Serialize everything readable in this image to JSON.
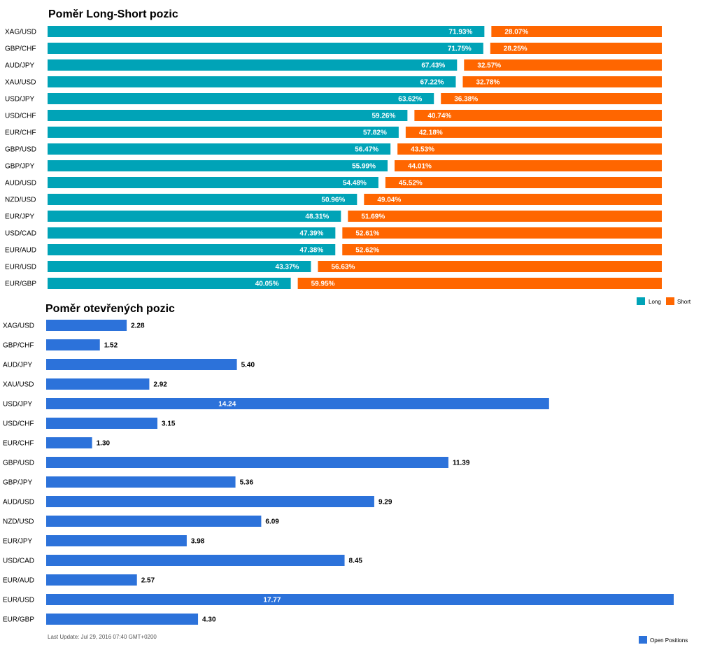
{
  "colors": {
    "long": "#00A3B7",
    "short": "#FF6600",
    "open": "#2C72DA"
  },
  "chart_data": [
    {
      "type": "bar",
      "orientation": "horizontal",
      "stacked": true,
      "title": "Poměr Long-Short pozic",
      "categories": [
        "XAG/USD",
        "GBP/CHF",
        "AUD/JPY",
        "XAU/USD",
        "USD/JPY",
        "USD/CHF",
        "EUR/CHF",
        "GBP/USD",
        "GBP/JPY",
        "AUD/USD",
        "NZD/USD",
        "EUR/JPY",
        "USD/CAD",
        "EUR/AUD",
        "EUR/USD",
        "EUR/GBP"
      ],
      "series": [
        {
          "name": "Long",
          "values": [
            71.93,
            71.75,
            67.43,
            67.22,
            63.62,
            59.26,
            57.82,
            56.47,
            55.99,
            54.48,
            50.96,
            48.31,
            47.39,
            47.38,
            43.37,
            40.05
          ]
        },
        {
          "name": "Short",
          "values": [
            28.07,
            28.25,
            32.57,
            32.78,
            36.38,
            40.74,
            42.18,
            43.53,
            44.01,
            45.52,
            49.04,
            51.69,
            52.61,
            52.62,
            56.63,
            59.95
          ]
        }
      ],
      "labels": {
        "Long": [
          "71.93%",
          "71.75%",
          "67.43%",
          "67.22%",
          "63.62%",
          "59.26%",
          "57.82%",
          "56.47%",
          "55.99%",
          "54.48%",
          "50.96%",
          "48.31%",
          "47.39%",
          "47.38%",
          "43.37%",
          "40.05%"
        ],
        "Short": [
          "28.07%",
          "28.25%",
          "32.57%",
          "32.78%",
          "36.38%",
          "40.74%",
          "42.18%",
          "43.53%",
          "44.01%",
          "45.52%",
          "49.04%",
          "51.69%",
          "52.61%",
          "52.62%",
          "56.63%",
          "59.95%"
        ]
      },
      "xlim": [
        0,
        100
      ],
      "legend": "bottom-right"
    },
    {
      "type": "bar",
      "orientation": "horizontal",
      "title": "Poměr otevřených pozic",
      "categories": [
        "XAG/USD",
        "GBP/CHF",
        "AUD/JPY",
        "XAU/USD",
        "USD/JPY",
        "USD/CHF",
        "EUR/CHF",
        "GBP/USD",
        "GBP/JPY",
        "AUD/USD",
        "NZD/USD",
        "EUR/JPY",
        "USD/CAD",
        "EUR/AUD",
        "EUR/USD",
        "EUR/GBP"
      ],
      "series": [
        {
          "name": "Open Positions",
          "values": [
            2.28,
            1.52,
            5.4,
            2.92,
            14.24,
            3.15,
            1.3,
            11.39,
            5.36,
            9.29,
            6.09,
            3.98,
            8.45,
            2.57,
            17.77,
            4.3
          ]
        }
      ],
      "labels": [
        "2.28",
        "1.52",
        "5.40",
        "2.92",
        "14.24",
        "3.15",
        "1.30",
        "11.39",
        "5.36",
        "9.29",
        "6.09",
        "3.98",
        "8.45",
        "2.57",
        "17.77",
        "4.30"
      ],
      "xlim": [
        0,
        17.77
      ],
      "legend": "bottom-right"
    }
  ],
  "footnote": "Last Update: Jul 29, 2016 07:40 GMT+0200"
}
